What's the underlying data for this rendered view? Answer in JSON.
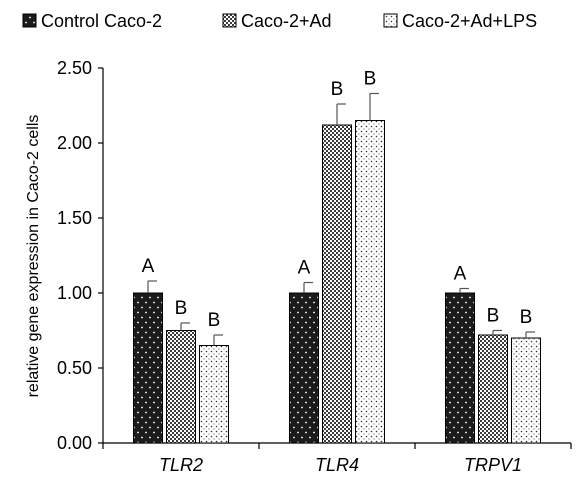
{
  "chart_data": {
    "type": "bar",
    "title": "",
    "xlabel": "",
    "ylabel": "relative gene expression in Caco-2 cells",
    "ylim": [
      0,
      2.5
    ],
    "yticks": [
      "0.00",
      "0.50",
      "1.00",
      "1.50",
      "2.00",
      "2.50"
    ],
    "categories": [
      "TLR2",
      "TLR4",
      "TRPV1"
    ],
    "legend_position": "top",
    "grid": false,
    "series": [
      {
        "name": "Control Caco-2",
        "pattern": "dark-dotted",
        "values": [
          1.0,
          1.0,
          1.0
        ],
        "errors": [
          0.08,
          0.07,
          0.03
        ],
        "letters": [
          "A",
          "A",
          "A"
        ]
      },
      {
        "name": "Caco-2+Ad",
        "pattern": "crosshatch",
        "values": [
          0.75,
          2.12,
          0.72
        ],
        "errors": [
          0.05,
          0.14,
          0.03
        ],
        "letters": [
          "B",
          "B",
          "B"
        ]
      },
      {
        "name": "Caco-2+Ad+LPS",
        "pattern": "light-dotted",
        "values": [
          0.65,
          2.15,
          0.7
        ],
        "errors": [
          0.07,
          0.18,
          0.04
        ],
        "letters": [
          "B",
          "B",
          "B"
        ]
      }
    ]
  }
}
